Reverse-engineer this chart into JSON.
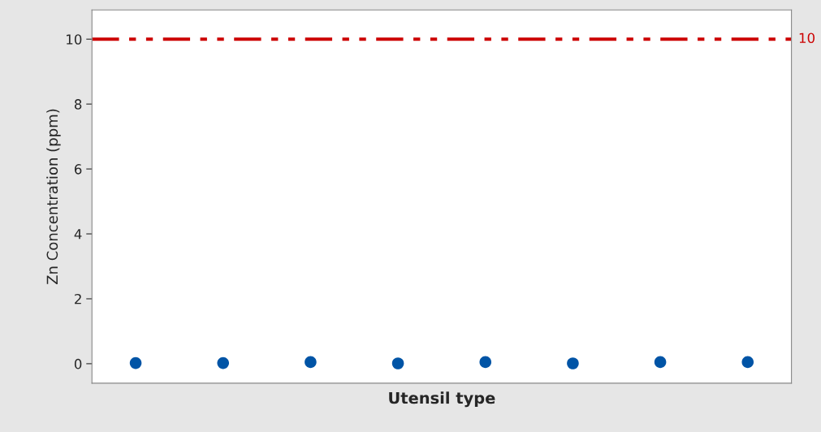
{
  "chart_data": {
    "type": "scatter",
    "xlabel": "Utensil type",
    "ylabel": "Zn Concentration (ppm)",
    "categories": [
      null,
      null,
      null,
      null,
      null,
      null,
      null,
      null
    ],
    "series": [
      {
        "color": "#0054a6",
        "values": [
          0.02,
          0.02,
          0.05,
          0.01,
          0.05,
          0.01,
          0.05,
          0.05
        ]
      }
    ],
    "ylim": [
      -0.6,
      10.9
    ],
    "yticks": [
      0,
      2,
      4,
      6,
      8,
      10
    ],
    "ref_lines": [
      {
        "axis": "y",
        "value": 10,
        "label": "10",
        "color": "#cc0000",
        "line_style": "dashdotdot"
      }
    ],
    "grid": false,
    "legend": false,
    "marker": "circle"
  }
}
